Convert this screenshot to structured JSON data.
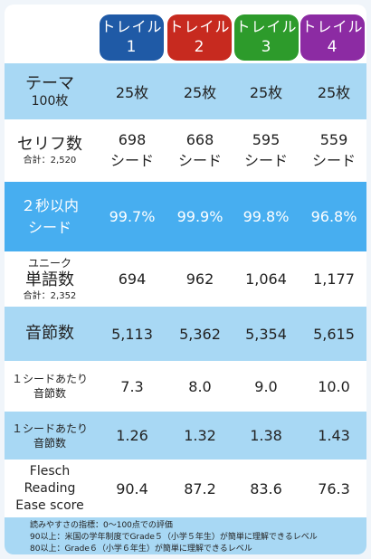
{
  "trails": [
    {
      "label": "トレイル",
      "num": "1",
      "color": "#1f5aa6"
    },
    {
      "label": "トレイル",
      "num": "2",
      "color": "#c72a1f"
    },
    {
      "label": "トレイル",
      "num": "3",
      "color": "#2d9b2b"
    },
    {
      "label": "トレイル",
      "num": "4",
      "color": "#8c2ba3"
    }
  ],
  "rows": {
    "theme": {
      "label": "テーマ",
      "sub": "100枚",
      "values": [
        "25枚",
        "25枚",
        "25枚",
        "25枚"
      ]
    },
    "lines": {
      "label": "セリフ数",
      "sub": "合計：2,520",
      "values": [
        "698",
        "668",
        "595",
        "559"
      ],
      "unit": "シード"
    },
    "within2": {
      "label1": "２秒以内",
      "label2": "シード",
      "values": [
        "99.7%",
        "99.9%",
        "99.8%",
        "96.8%"
      ]
    },
    "unique": {
      "label1": "ユニーク",
      "label2": "単語数",
      "sub": "合計：2,352",
      "values": [
        "694",
        "962",
        "1,064",
        "1,177"
      ]
    },
    "syllables": {
      "label": "音節数",
      "values": [
        "5,113",
        "5,362",
        "5,354",
        "5,615"
      ]
    },
    "perSeed": {
      "label1": "１シードあたり",
      "label2": "音節数",
      "values": [
        "7.3",
        "8.0",
        "9.0",
        "10.0"
      ]
    },
    "perSeed2": {
      "label1": "１シードあたり",
      "label2": "音節数",
      "values": [
        "1.26",
        "1.32",
        "1.38",
        "1.43"
      ]
    },
    "flesch": {
      "label1": "Flesch",
      "label2": "Reading",
      "label3": "Ease score",
      "values": [
        "90.4",
        "87.2",
        "83.6",
        "76.3"
      ]
    }
  },
  "footer": [
    "読みやすさの指標：0〜100点での評価",
    "90以上：米国の学年制度でGrade５（小学５年生）が簡単に理解できるレベル",
    "80以上：Grade６（小学６年生）が簡単に理解できるレベル"
  ]
}
